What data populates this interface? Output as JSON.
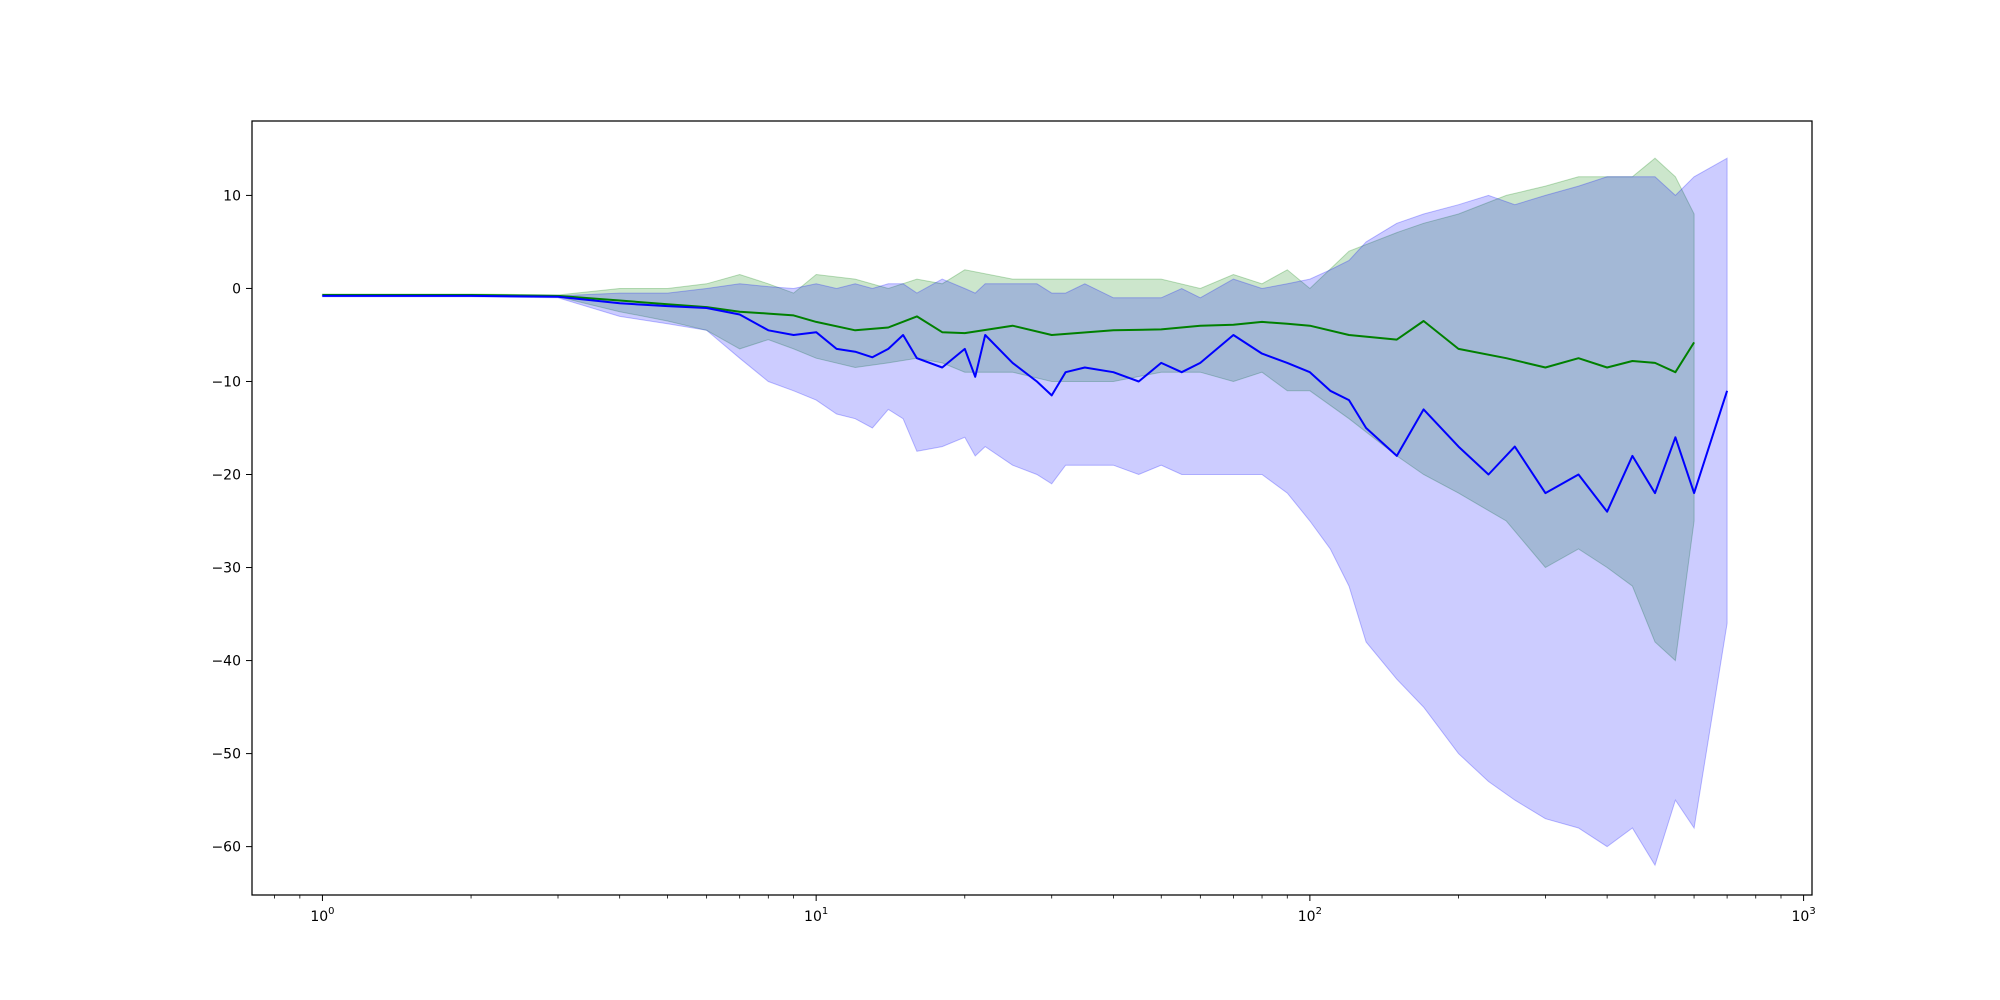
{
  "chart_data": {
    "type": "line",
    "title": "",
    "xlabel": "",
    "ylabel": "",
    "xscale": "log",
    "xlim": [
      0.72,
      1040
    ],
    "ylim": [
      -65.2,
      18
    ],
    "x_ticks": [
      {
        "value": 1,
        "base": "10",
        "exp": "0"
      },
      {
        "value": 10,
        "base": "10",
        "exp": "1"
      },
      {
        "value": 100,
        "base": "10",
        "exp": "2"
      },
      {
        "value": 1000,
        "base": "10",
        "exp": "3"
      }
    ],
    "y_ticks": [
      {
        "value": 10,
        "label": "10"
      },
      {
        "value": 0,
        "label": "0"
      },
      {
        "value": -10,
        "label": "−10"
      },
      {
        "value": -20,
        "label": "−20"
      },
      {
        "value": -30,
        "label": "−30"
      },
      {
        "value": -40,
        "label": "−40"
      },
      {
        "value": -50,
        "label": "−50"
      },
      {
        "value": -60,
        "label": "−60"
      }
    ],
    "grid": false,
    "legend": "none",
    "series": [
      {
        "color": "#008000",
        "band_color": "#008000",
        "band_opacity": 0.2,
        "x": [
          1,
          2,
          3,
          4,
          5,
          6,
          7,
          8,
          9,
          10,
          12,
          14,
          16,
          18,
          20,
          25,
          30,
          40,
          50,
          60,
          70,
          80,
          90,
          100,
          120,
          150,
          170,
          200,
          250,
          300,
          350,
          400,
          450,
          500,
          550,
          600
        ],
        "mean": [
          -0.7,
          -0.7,
          -0.8,
          -1.3,
          -1.7,
          -2.0,
          -2.5,
          -2.7,
          -2.9,
          -3.6,
          -4.5,
          -4.2,
          -3.0,
          -4.7,
          -4.8,
          -4.0,
          -5.0,
          -4.5,
          -4.4,
          -4.0,
          -3.9,
          -3.6,
          -3.8,
          -4.0,
          -5.0,
          -5.5,
          -3.5,
          -6.5,
          -7.5,
          -8.5,
          -7.5,
          -8.5,
          -7.8,
          -8.0,
          -9.0,
          -5.8
        ],
        "upper": [
          -0.6,
          -0.6,
          -0.7,
          0.0,
          0.0,
          0.5,
          1.5,
          0.5,
          -0.5,
          1.5,
          1.0,
          0.0,
          1.0,
          0.5,
          2.0,
          1.0,
          1.0,
          1.0,
          1.0,
          0.0,
          1.5,
          0.5,
          2.0,
          0.0,
          4.0,
          6.0,
          7.0,
          8.0,
          10.0,
          11.0,
          12.0,
          12.0,
          12.0,
          14.0,
          12.0,
          8.0
        ],
        "lower": [
          -0.8,
          -0.8,
          -0.9,
          -2.5,
          -3.5,
          -4.5,
          -6.5,
          -5.5,
          -6.5,
          -7.5,
          -8.5,
          -8.0,
          -7.5,
          -8.0,
          -9.0,
          -9.0,
          -10.0,
          -10.0,
          -9.0,
          -9.0,
          -10.0,
          -9.0,
          -11.0,
          -11.0,
          -14.0,
          -18.0,
          -20.0,
          -22.0,
          -25.0,
          -30.0,
          -28.0,
          -30.0,
          -32.0,
          -38.0,
          -40.0,
          -25.0
        ]
      },
      {
        "color": "#0000ff",
        "band_color": "#0000ff",
        "band_opacity": 0.2,
        "x": [
          1,
          2,
          3,
          4,
          5,
          6,
          7,
          8,
          9,
          10,
          11,
          12,
          13,
          14,
          15,
          16,
          18,
          20,
          21,
          22,
          25,
          28,
          30,
          32,
          35,
          40,
          45,
          50,
          55,
          60,
          70,
          80,
          90,
          100,
          110,
          120,
          130,
          150,
          170,
          200,
          230,
          260,
          300,
          350,
          400,
          450,
          500,
          550,
          600,
          700
        ],
        "mean": [
          -0.8,
          -0.8,
          -0.9,
          -1.6,
          -1.9,
          -2.1,
          -2.8,
          -4.5,
          -5.0,
          -4.7,
          -6.5,
          -6.8,
          -7.4,
          -6.5,
          -5.0,
          -7.5,
          -8.5,
          -6.5,
          -9.5,
          -5.0,
          -8.0,
          -10.0,
          -11.5,
          -9.0,
          -8.5,
          -9.0,
          -10.0,
          -8.0,
          -9.0,
          -8.0,
          -5.0,
          -7.0,
          -8.0,
          -9.0,
          -11.0,
          -12.0,
          -15.0,
          -18.0,
          -13.0,
          -17.0,
          -20.0,
          -17.0,
          -22.0,
          -20.0,
          -24.0,
          -18.0,
          -22.0,
          -16.0,
          -22.0,
          -11.0
        ],
        "upper": [
          -0.7,
          -0.7,
          -0.8,
          -0.5,
          -0.5,
          0.0,
          0.5,
          0.2,
          0.0,
          0.5,
          0.0,
          0.5,
          0.0,
          0.5,
          0.5,
          -0.5,
          1.0,
          0.0,
          -0.5,
          0.5,
          0.5,
          0.5,
          -0.5,
          -0.5,
          0.5,
          -1.0,
          -1.0,
          -1.0,
          0.0,
          -1.0,
          1.0,
          0.0,
          0.5,
          1.0,
          2.0,
          3.0,
          5.0,
          7.0,
          8.0,
          9.0,
          10.0,
          9.0,
          10.0,
          11.0,
          12.0,
          12.0,
          12.0,
          10.0,
          12.0,
          14.0
        ],
        "lower": [
          -0.9,
          -0.9,
          -1.0,
          -3.0,
          -3.8,
          -4.5,
          -7.5,
          -10.0,
          -11.0,
          -12.0,
          -13.5,
          -14.0,
          -15.0,
          -13.0,
          -14.0,
          -17.5,
          -17.0,
          -16.0,
          -18.0,
          -17.0,
          -19.0,
          -20.0,
          -21.0,
          -19.0,
          -19.0,
          -19.0,
          -20.0,
          -19.0,
          -20.0,
          -20.0,
          -20.0,
          -20.0,
          -22.0,
          -25.0,
          -28.0,
          -32.0,
          -38.0,
          -42.0,
          -45.0,
          -50.0,
          -53.0,
          -55.0,
          -57.0,
          -58.0,
          -60.0,
          -58.0,
          -62.0,
          -55.0,
          -58.0,
          -36.0
        ]
      }
    ]
  }
}
